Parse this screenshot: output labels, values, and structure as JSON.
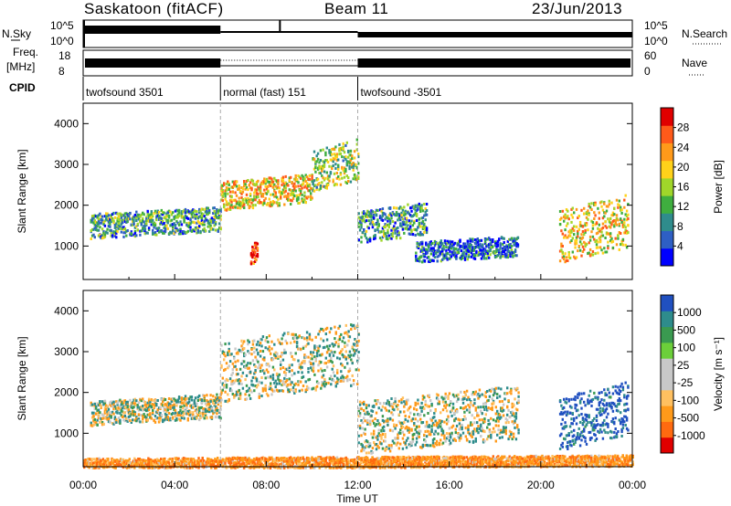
{
  "header": {
    "station": "Saskatoon (fitACF)",
    "beam": "Beam 11",
    "date": "23/Jun/2013"
  },
  "status_panel": {
    "left_labels": {
      "nsky": "N.Sky",
      "freq": "Freq.",
      "freq_unit": "[MHz]",
      "cpid": "CPID"
    },
    "right_labels": {
      "nsearch": "N.Search",
      "nave": "Nave"
    },
    "nsky_ticks": [
      "10^5",
      "10^0"
    ],
    "nsearch_ticks": [
      "10^5",
      "10^0"
    ],
    "freq_ticks": [
      "18",
      "8"
    ],
    "nave_ticks": [
      "60",
      "0"
    ],
    "cpid_segments": [
      {
        "label": "twofsound 3501",
        "start_hour": 0,
        "end_hour": 6
      },
      {
        "label": "normal (fast) 151",
        "start_hour": 6,
        "end_hour": 12
      },
      {
        "label": "twofsound -3501",
        "start_hour": 12,
        "end_hour": 24
      }
    ]
  },
  "chart_data": [
    {
      "type": "heatmap",
      "name": "power",
      "ylabel": "Slant Range [km]",
      "ylim": [
        180,
        4500
      ],
      "yticks": [
        1000,
        2000,
        3000,
        4000
      ],
      "xlim": [
        0,
        24
      ],
      "colorbar": {
        "label": "Power [dB]",
        "ticks": [
          "28",
          "24",
          "20",
          "16",
          "12",
          "8",
          "4"
        ],
        "colors": [
          "#0000ff",
          "#2e5fc4",
          "#2f8c8c",
          "#3fae3f",
          "#a0d62a",
          "#ffd21a",
          "#ff9a1a",
          "#ff5a1a",
          "#e00000"
        ]
      },
      "features": [
        {
          "from_hour": 0.3,
          "to_hour": 6.0,
          "range_km": [
            1300,
            1900
          ],
          "power_db": 12
        },
        {
          "from_hour": 6.0,
          "to_hour": 10.0,
          "range_km": [
            2000,
            2700
          ],
          "power_db": 20
        },
        {
          "from_hour": 10.0,
          "to_hour": 12.0,
          "range_km": [
            2500,
            3500
          ],
          "power_db": 16
        },
        {
          "from_hour": 12.0,
          "to_hour": 15.0,
          "range_km": [
            1200,
            2000
          ],
          "power_db": 12
        },
        {
          "from_hour": 14.5,
          "to_hour": 19.0,
          "range_km": [
            700,
            1200
          ],
          "power_db": 8
        },
        {
          "from_hour": 20.8,
          "to_hour": 23.8,
          "range_km": [
            800,
            2100
          ],
          "power_db": 20
        },
        {
          "from_hour": 7.3,
          "to_hour": 7.6,
          "range_km": [
            600,
            1100
          ],
          "power_db": 28
        }
      ]
    },
    {
      "type": "heatmap",
      "name": "velocity",
      "ylabel": "Slant Range [km]",
      "ylim": [
        180,
        4500
      ],
      "yticks": [
        1000,
        2000,
        3000,
        4000
      ],
      "xlim": [
        0,
        24
      ],
      "colorbar": {
        "label": "Velocity [m s⁻¹]",
        "ticks": [
          "1000",
          "500",
          "100",
          "25",
          "-25",
          "-100",
          "-500",
          "-1000"
        ],
        "colors": [
          "#e00000",
          "#ff6a10",
          "#ff9a1a",
          "#ffc060",
          "#c8c8c8",
          "#c8c8c8",
          "#6ccf3a",
          "#3a9a50",
          "#2e8c8c",
          "#2050c0"
        ]
      },
      "features": [
        {
          "from_hour": 0.3,
          "to_hour": 6.0,
          "range_km": [
            1300,
            1900
          ],
          "velocity": 0
        },
        {
          "from_hour": 6.0,
          "to_hour": 12.0,
          "range_km": [
            2000,
            3500
          ],
          "velocity": 0
        },
        {
          "from_hour": 12.0,
          "to_hour": 19.0,
          "range_km": [
            700,
            2000
          ],
          "velocity": 0
        },
        {
          "from_hour": 20.8,
          "to_hour": 23.8,
          "range_km": [
            800,
            2100
          ],
          "velocity": 200
        },
        {
          "from_hour": 0.0,
          "to_hour": 24.0,
          "range_km": [
            180,
            450
          ],
          "velocity": -150
        }
      ]
    }
  ],
  "x_axis": {
    "label": "Time UT",
    "ticks": [
      "00:00",
      "04:00",
      "08:00",
      "12:00",
      "16:00",
      "20:00",
      "00:00"
    ]
  }
}
